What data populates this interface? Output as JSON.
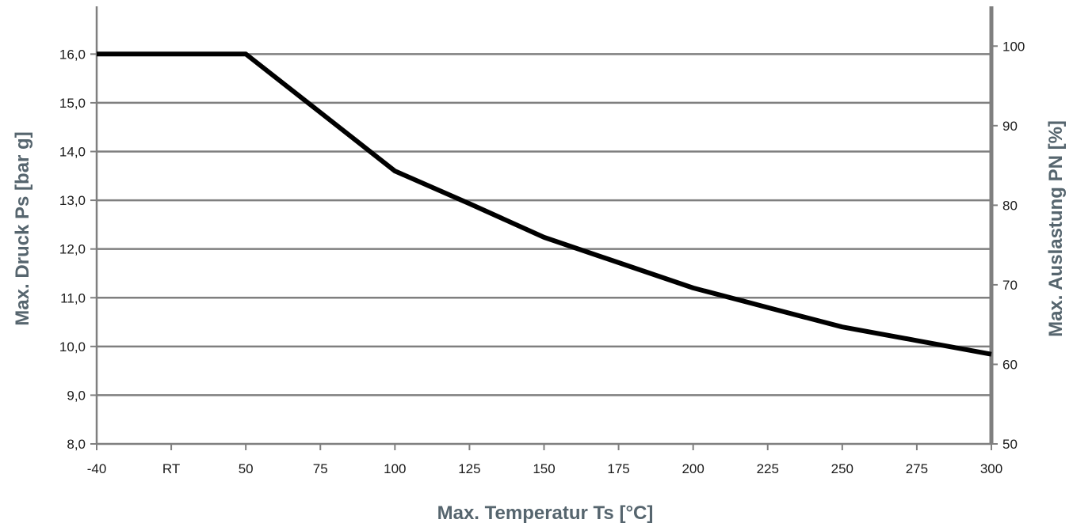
{
  "chart_data": {
    "type": "line",
    "title": "",
    "xlabel": "Max. Temperatur Ts [°C]",
    "ylabel": "Max. Druck Ps [bar g]",
    "ylabel_right": "Max. Auslastung PN [%]",
    "categories": [
      "-40",
      "RT",
      "50",
      "75",
      "100",
      "125",
      "150",
      "175",
      "200",
      "225",
      "250",
      "275",
      "300"
    ],
    "ylim": [
      8,
      16.98
    ],
    "ylim_right": [
      50,
      105
    ],
    "y_ticks": [
      "8,0",
      "9,0",
      "10,0",
      "11,0",
      "12,0",
      "13,0",
      "14,0",
      "15,0",
      "16,0"
    ],
    "y_right_ticks": [
      "50",
      "60",
      "70",
      "80",
      "90",
      "100"
    ],
    "grid": true,
    "series": [
      {
        "values": [
          16.0,
          16.0,
          16.0,
          14.8,
          13.6,
          12.93,
          12.24,
          11.72,
          11.2,
          10.8,
          10.4,
          10.12,
          9.84
        ],
        "color": "#000000"
      }
    ],
    "colors": {
      "axis": "#7f7f7f",
      "grid": "#7f7f7f",
      "label": "#56656e",
      "line": "#000000"
    }
  }
}
